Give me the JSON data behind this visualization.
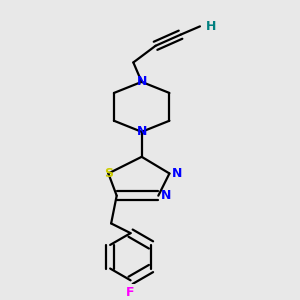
{
  "bg_color": "#e8e8e8",
  "atom_colors": {
    "N": "#0000ff",
    "S": "#cccc00",
    "F": "#ff00ff",
    "H": "#008080"
  },
  "bond_color": "#000000",
  "line_width": 1.6,
  "figsize": [
    3.0,
    3.0
  ],
  "dpi": 100
}
